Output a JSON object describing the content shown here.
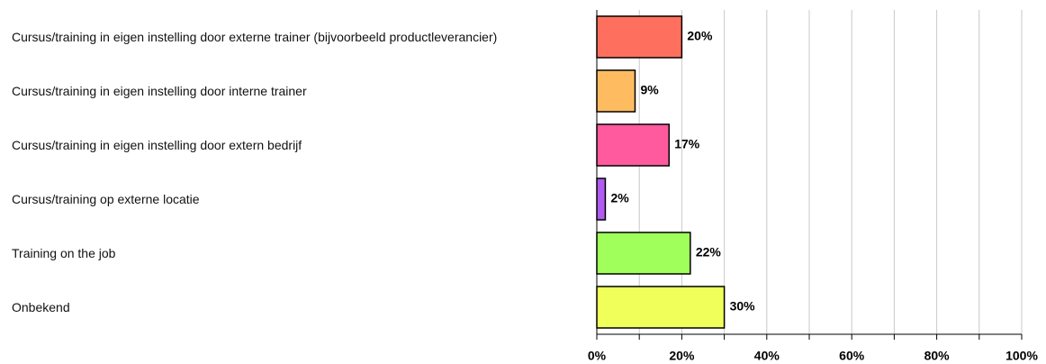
{
  "chart_data": {
    "type": "barh",
    "categories": [
      "Cursus/training in eigen instelling door externe trainer (bijvoorbeeld productleverancier)",
      "Cursus/training in eigen instelling door interne trainer",
      "Cursus/training in eigen instelling door extern bedrijf",
      "Cursus/training op externe locatie",
      "Training on the job",
      "Onbekend"
    ],
    "values": [
      20,
      9,
      17,
      2,
      22,
      30
    ],
    "value_labels": [
      "20%",
      "9%",
      "17%",
      "2%",
      "22%",
      "30%"
    ],
    "colors": [
      "#ff6f5e",
      "#ffbb60",
      "#ff5a9e",
      "#b05cf0",
      "#a0ff5a",
      "#f0ff5a"
    ],
    "xlim": [
      0,
      100
    ],
    "xticks": [
      {
        "value": 0,
        "label": "0%"
      },
      {
        "value": 20,
        "label": "20%"
      },
      {
        "value": 40,
        "label": "40%"
      },
      {
        "value": 60,
        "label": "60%"
      },
      {
        "value": 80,
        "label": "80%"
      },
      {
        "value": 100,
        "label": "100%"
      }
    ],
    "minor_xticks": [
      10,
      30,
      50,
      70,
      90
    ],
    "grid": true
  }
}
